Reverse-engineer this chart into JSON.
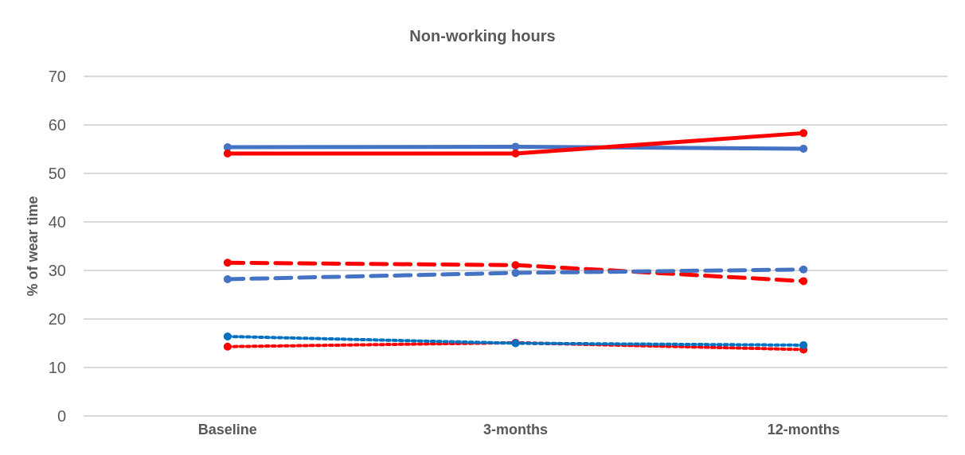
{
  "chart_data": {
    "type": "line",
    "title": "Non-working hours",
    "ylabel": "% of wear time",
    "categories": [
      "Baseline",
      "3-months",
      "12-months"
    ],
    "ylim": [
      0,
      70
    ],
    "yticks": [
      0,
      10,
      20,
      30,
      40,
      50,
      60,
      70
    ],
    "grid": "y",
    "marker": "circle",
    "series": [
      {
        "color": "#4472c4",
        "line_style": "solid",
        "values": [
          55.4,
          55.5,
          55.1
        ]
      },
      {
        "color": "#ff0000",
        "line_style": "solid",
        "values": [
          54.1,
          54.1,
          58.3
        ]
      },
      {
        "color": "#ff0000",
        "line_style": "dashed",
        "values": [
          31.6,
          31.1,
          27.8
        ]
      },
      {
        "color": "#4472c4",
        "line_style": "dashed",
        "values": [
          28.2,
          29.5,
          30.2
        ]
      },
      {
        "color": "#ff0000",
        "line_style": "dotted",
        "values": [
          14.3,
          15.1,
          13.7
        ]
      },
      {
        "color": "#0070c0",
        "line_style": "dotted",
        "values": [
          16.4,
          15.0,
          14.6
        ]
      }
    ]
  }
}
